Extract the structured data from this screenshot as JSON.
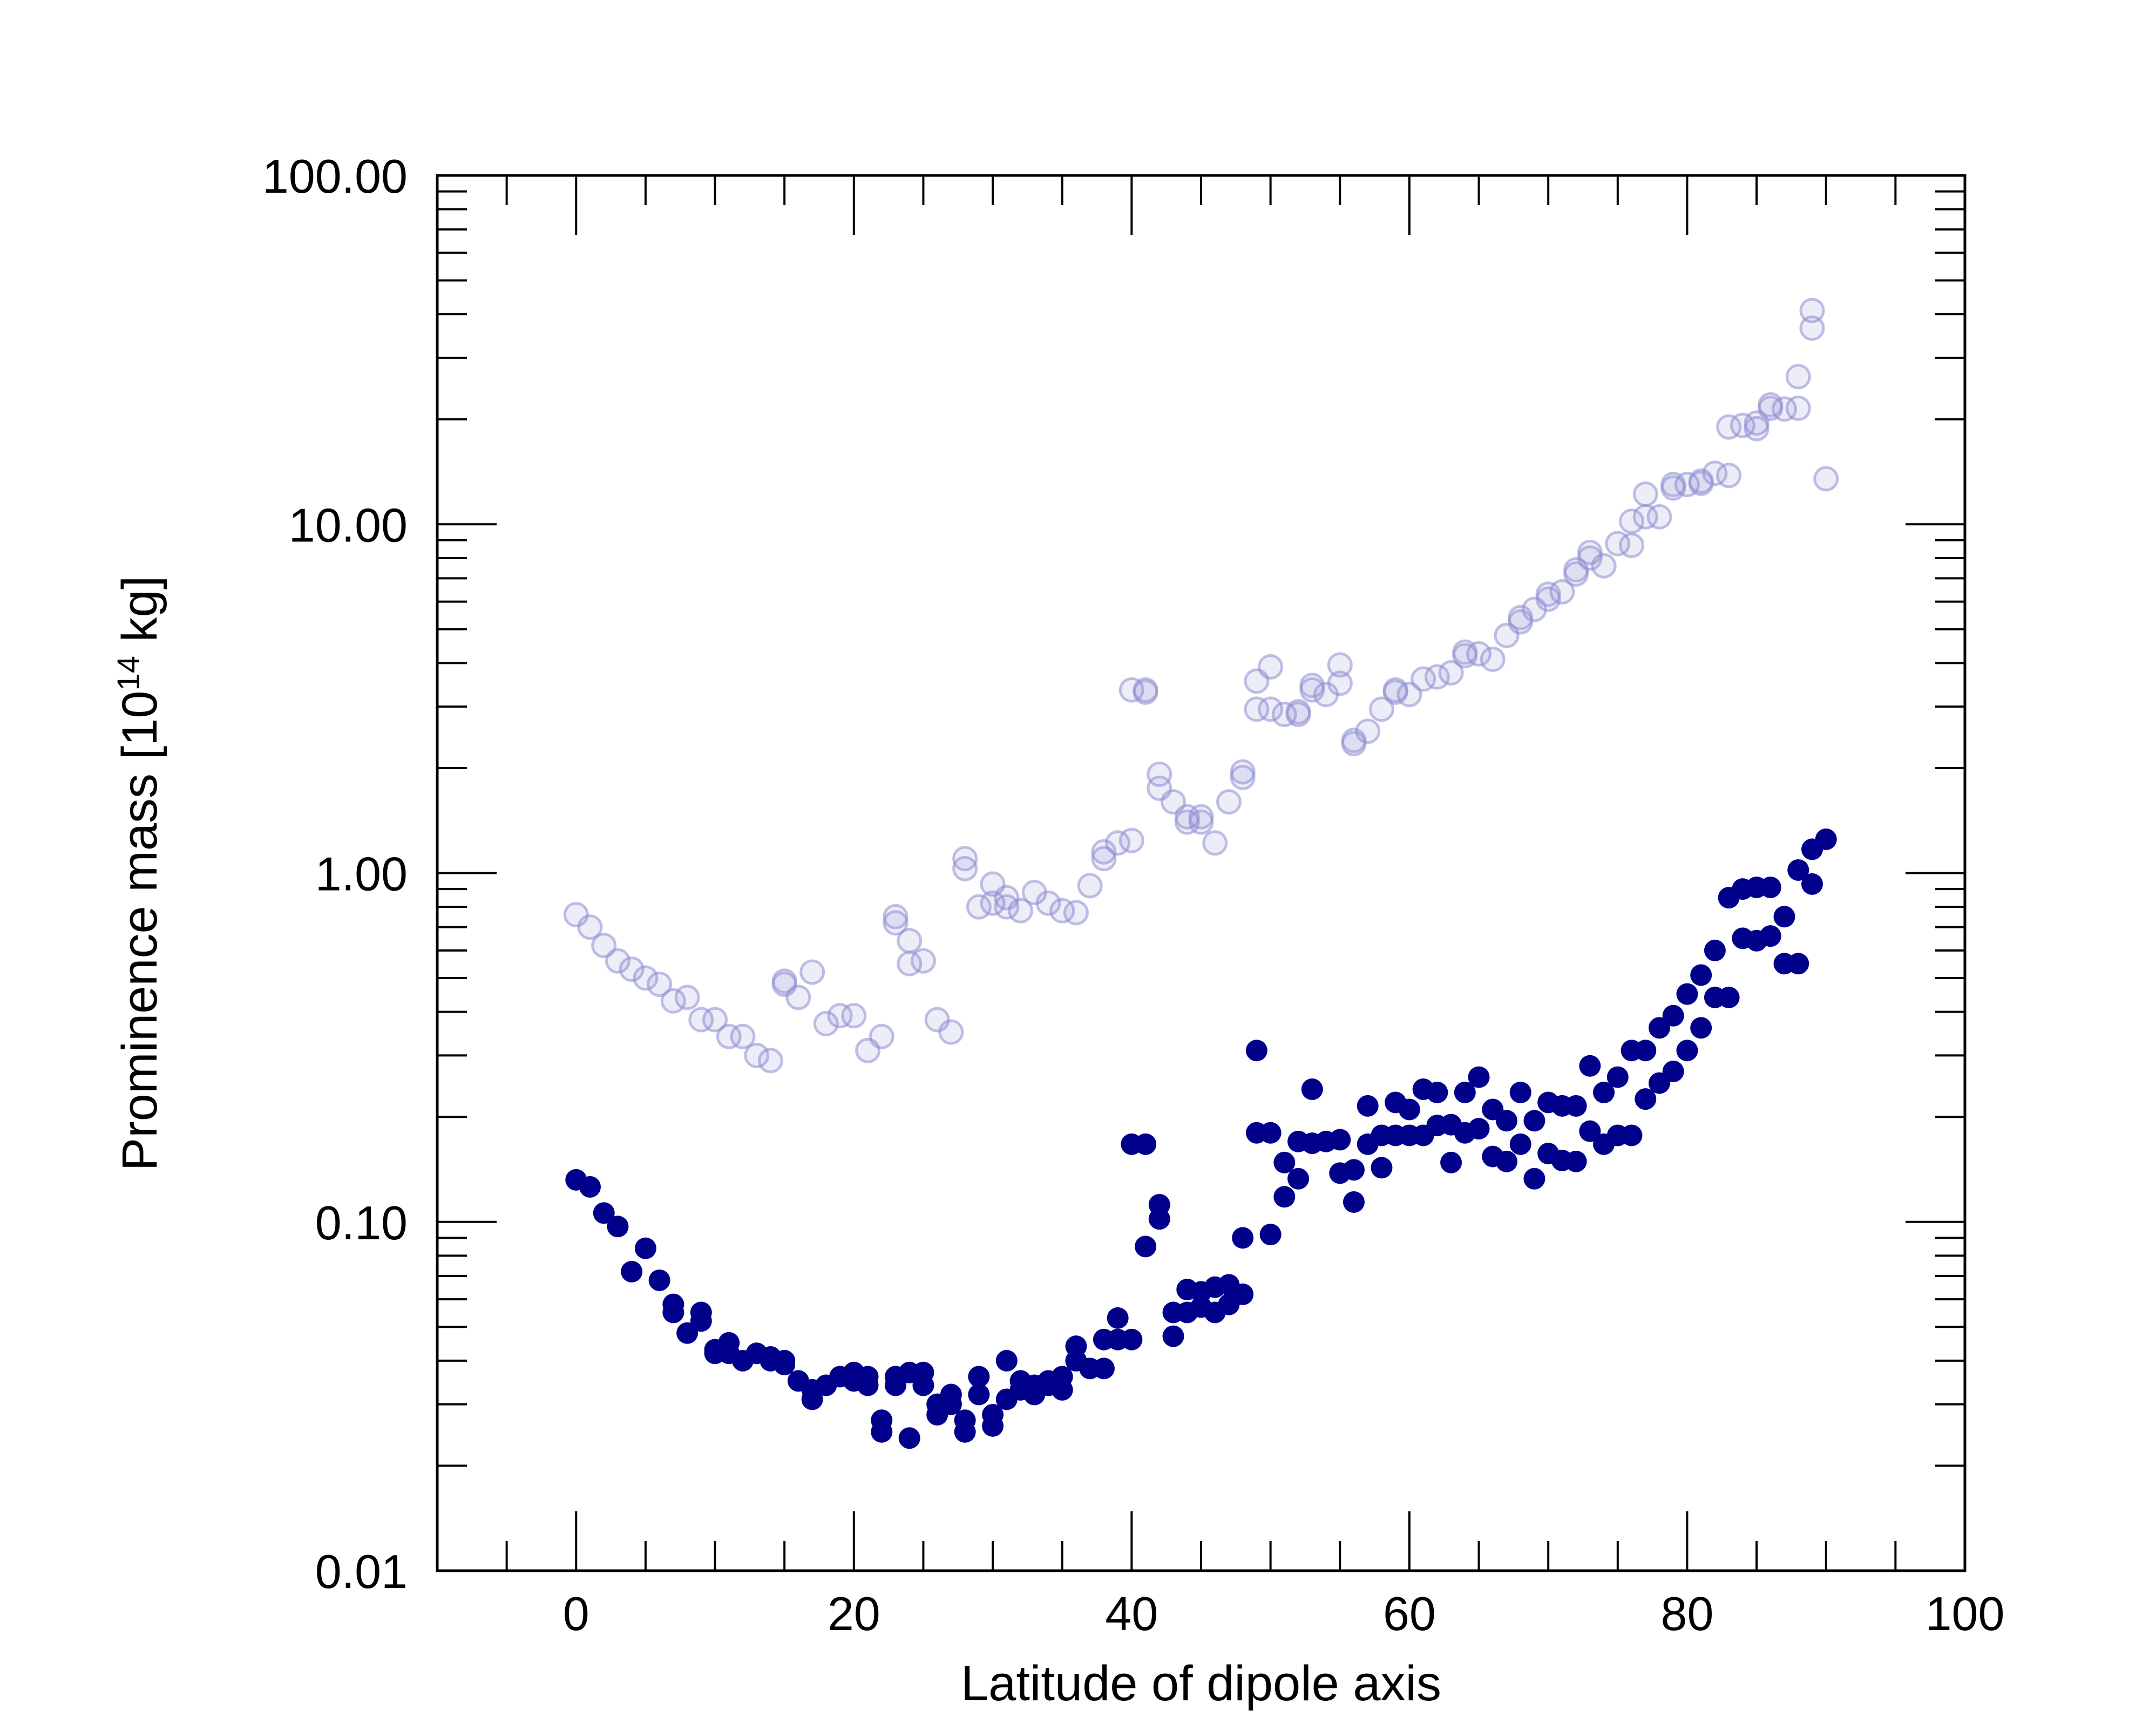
{
  "chart_data": {
    "type": "scatter",
    "title": "",
    "xlabel": "Latitude of dipole axis",
    "ylabel": {
      "prefix": "Prominence mass [10",
      "exponent": "14",
      "suffix": " kg]"
    },
    "xlim": [
      -10,
      100
    ],
    "ylim": [
      0.01,
      100
    ],
    "yscale": "log",
    "grid": false,
    "legend": null,
    "x_ticks": [
      0,
      20,
      40,
      60,
      80,
      100
    ],
    "y_ticks": [
      0.01,
      0.1,
      1,
      10,
      100
    ],
    "x_tick_labels": [
      "0",
      "20",
      "40",
      "60",
      "80",
      "100"
    ],
    "y_tick_labels": [
      "0.01",
      "0.10",
      "1.00",
      "10.00",
      "100.00"
    ],
    "series": [
      {
        "style": "open-faint",
        "color": "#8c8cd2",
        "points": [
          [
            0,
            0.76
          ],
          [
            1,
            0.7
          ],
          [
            2,
            0.62
          ],
          [
            3,
            0.56
          ],
          [
            4,
            0.53
          ],
          [
            5,
            0.5
          ],
          [
            6,
            0.48
          ],
          [
            7,
            0.43
          ],
          [
            8,
            0.44
          ],
          [
            9,
            0.38
          ],
          [
            10,
            0.38
          ],
          [
            11,
            0.34
          ],
          [
            12,
            0.34
          ],
          [
            13,
            0.3
          ],
          [
            14,
            0.29
          ],
          [
            15,
            0.48
          ],
          [
            15,
            0.49
          ],
          [
            16,
            0.44
          ],
          [
            17,
            0.52
          ],
          [
            18,
            0.37
          ],
          [
            19,
            0.39
          ],
          [
            20,
            0.39
          ],
          [
            21,
            0.31
          ],
          [
            22,
            0.34
          ],
          [
            23,
            0.75
          ],
          [
            23,
            0.72
          ],
          [
            24,
            0.64
          ],
          [
            24,
            0.55
          ],
          [
            25,
            0.56
          ],
          [
            26,
            0.38
          ],
          [
            27,
            0.35
          ],
          [
            28,
            1.1
          ],
          [
            28,
            1.03
          ],
          [
            29,
            0.8
          ],
          [
            30,
            0.93
          ],
          [
            30,
            0.82
          ],
          [
            31,
            0.85
          ],
          [
            31,
            0.8
          ],
          [
            32,
            0.78
          ],
          [
            33,
            0.88
          ],
          [
            34,
            0.82
          ],
          [
            35,
            0.78
          ],
          [
            36,
            0.77
          ],
          [
            37,
            0.92
          ],
          [
            38,
            1.1
          ],
          [
            38,
            1.15
          ],
          [
            39,
            1.22
          ],
          [
            40,
            1.24
          ],
          [
            40,
            3.35
          ],
          [
            41,
            3.35
          ],
          [
            41,
            3.3
          ],
          [
            42,
            1.92
          ],
          [
            42,
            1.75
          ],
          [
            43,
            1.6
          ],
          [
            44,
            1.45
          ],
          [
            44,
            1.4
          ],
          [
            45,
            1.45
          ],
          [
            45,
            1.4
          ],
          [
            46,
            1.22
          ],
          [
            47,
            1.6
          ],
          [
            48,
            1.95
          ],
          [
            48,
            1.88
          ],
          [
            49,
            3.55
          ],
          [
            49,
            2.95
          ],
          [
            50,
            3.9
          ],
          [
            50,
            2.95
          ],
          [
            51,
            2.85
          ],
          [
            52,
            2.9
          ],
          [
            52,
            2.85
          ],
          [
            53,
            3.45
          ],
          [
            53,
            3.35
          ],
          [
            54,
            3.25
          ],
          [
            55,
            3.5
          ],
          [
            55,
            3.95
          ],
          [
            56,
            2.4
          ],
          [
            56,
            2.35
          ],
          [
            57,
            2.55
          ],
          [
            58,
            2.95
          ],
          [
            59,
            3.35
          ],
          [
            59,
            3.3
          ],
          [
            60,
            3.25
          ],
          [
            61,
            3.6
          ],
          [
            62,
            3.65
          ],
          [
            63,
            3.75
          ],
          [
            64,
            4.3
          ],
          [
            64,
            4.2
          ],
          [
            65,
            4.25
          ],
          [
            66,
            4.1
          ],
          [
            67,
            4.8
          ],
          [
            68,
            5.25
          ],
          [
            68,
            5.4
          ],
          [
            69,
            5.7
          ],
          [
            70,
            6.3
          ],
          [
            70,
            6.1
          ],
          [
            71,
            6.4
          ],
          [
            72,
            7.4
          ],
          [
            72,
            7.2
          ],
          [
            73,
            8.3
          ],
          [
            73,
            8.0
          ],
          [
            74,
            7.6
          ],
          [
            75,
            8.8
          ],
          [
            76,
            8.7
          ],
          [
            76,
            10.2
          ],
          [
            77,
            12.2
          ],
          [
            77,
            10.5
          ],
          [
            78,
            10.5
          ],
          [
            79,
            12.7
          ],
          [
            79,
            13.0
          ],
          [
            80,
            13.0
          ],
          [
            81,
            13.1
          ],
          [
            81,
            13.3
          ],
          [
            82,
            14.0
          ],
          [
            83,
            13.8
          ],
          [
            83,
            19.0
          ],
          [
            84,
            19.2
          ],
          [
            85,
            18.8
          ],
          [
            85,
            19.5
          ],
          [
            86,
            21.5
          ],
          [
            86,
            22.0
          ],
          [
            87,
            21.4
          ],
          [
            88,
            26.5
          ],
          [
            88,
            21.5
          ],
          [
            89,
            41.0
          ],
          [
            89,
            36.5
          ],
          [
            90,
            13.5
          ]
        ]
      },
      {
        "style": "filled",
        "color": "#00008b",
        "points": [
          [
            0,
            0.132
          ],
          [
            1,
            0.126
          ],
          [
            2,
            0.106
          ],
          [
            3,
            0.097
          ],
          [
            4,
            0.072
          ],
          [
            5,
            0.084
          ],
          [
            6,
            0.068
          ],
          [
            7,
            0.058
          ],
          [
            7,
            0.055
          ],
          [
            8,
            0.048
          ],
          [
            9,
            0.055
          ],
          [
            9,
            0.052
          ],
          [
            10,
            0.043
          ],
          [
            10,
            0.042
          ],
          [
            11,
            0.045
          ],
          [
            11,
            0.042
          ],
          [
            12,
            0.04
          ],
          [
            13,
            0.042
          ],
          [
            14,
            0.04
          ],
          [
            14,
            0.041
          ],
          [
            15,
            0.04
          ],
          [
            15,
            0.039
          ],
          [
            16,
            0.035
          ],
          [
            17,
            0.031
          ],
          [
            17,
            0.033
          ],
          [
            18,
            0.034
          ],
          [
            19,
            0.036
          ],
          [
            20,
            0.037
          ],
          [
            20,
            0.035
          ],
          [
            21,
            0.036
          ],
          [
            21,
            0.034
          ],
          [
            22,
            0.027
          ],
          [
            22,
            0.025
          ],
          [
            23,
            0.036
          ],
          [
            23,
            0.034
          ],
          [
            24,
            0.037
          ],
          [
            24,
            0.024
          ],
          [
            25,
            0.037
          ],
          [
            25,
            0.034
          ],
          [
            26,
            0.028
          ],
          [
            26,
            0.03
          ],
          [
            27,
            0.032
          ],
          [
            27,
            0.03
          ],
          [
            28,
            0.027
          ],
          [
            28,
            0.025
          ],
          [
            29,
            0.036
          ],
          [
            29,
            0.032
          ],
          [
            30,
            0.028
          ],
          [
            30,
            0.026
          ],
          [
            31,
            0.04
          ],
          [
            31,
            0.031
          ],
          [
            32,
            0.033
          ],
          [
            32,
            0.035
          ],
          [
            33,
            0.032
          ],
          [
            33,
            0.034
          ],
          [
            34,
            0.035
          ],
          [
            34,
            0.034
          ],
          [
            35,
            0.036
          ],
          [
            35,
            0.033
          ],
          [
            36,
            0.044
          ],
          [
            36,
            0.04
          ],
          [
            37,
            0.038
          ],
          [
            38,
            0.046
          ],
          [
            38,
            0.038
          ],
          [
            39,
            0.053
          ],
          [
            39,
            0.046
          ],
          [
            40,
            0.046
          ],
          [
            40,
            0.167
          ],
          [
            41,
            0.167
          ],
          [
            41,
            0.085
          ],
          [
            42,
            0.112
          ],
          [
            42,
            0.102
          ],
          [
            43,
            0.055
          ],
          [
            43,
            0.047
          ],
          [
            44,
            0.064
          ],
          [
            44,
            0.055
          ],
          [
            45,
            0.063
          ],
          [
            45,
            0.057
          ],
          [
            46,
            0.065
          ],
          [
            46,
            0.055
          ],
          [
            47,
            0.066
          ],
          [
            47,
            0.058
          ],
          [
            48,
            0.062
          ],
          [
            48,
            0.09
          ],
          [
            49,
            0.31
          ],
          [
            49,
            0.18
          ],
          [
            50,
            0.18
          ],
          [
            50,
            0.092
          ],
          [
            51,
            0.148
          ],
          [
            51,
            0.118
          ],
          [
            52,
            0.17
          ],
          [
            52,
            0.133
          ],
          [
            53,
            0.24
          ],
          [
            53,
            0.168
          ],
          [
            54,
            0.17
          ],
          [
            55,
            0.172
          ],
          [
            55,
            0.138
          ],
          [
            56,
            0.141
          ],
          [
            56,
            0.114
          ],
          [
            57,
            0.215
          ],
          [
            57,
            0.167
          ],
          [
            58,
            0.177
          ],
          [
            58,
            0.143
          ],
          [
            59,
            0.22
          ],
          [
            59,
            0.177
          ],
          [
            60,
            0.21
          ],
          [
            60,
            0.177
          ],
          [
            61,
            0.24
          ],
          [
            61,
            0.177
          ],
          [
            62,
            0.235
          ],
          [
            62,
            0.189
          ],
          [
            63,
            0.19
          ],
          [
            63,
            0.148
          ],
          [
            64,
            0.235
          ],
          [
            64,
            0.18
          ],
          [
            65,
            0.26
          ],
          [
            65,
            0.185
          ],
          [
            66,
            0.21
          ],
          [
            66,
            0.154
          ],
          [
            67,
            0.195
          ],
          [
            67,
            0.149
          ],
          [
            68,
            0.235
          ],
          [
            68,
            0.167
          ],
          [
            69,
            0.195
          ],
          [
            69,
            0.133
          ],
          [
            70,
            0.22
          ],
          [
            70,
            0.157
          ],
          [
            71,
            0.215
          ],
          [
            71,
            0.15
          ],
          [
            72,
            0.215
          ],
          [
            72,
            0.149
          ],
          [
            73,
            0.28
          ],
          [
            73,
            0.182
          ],
          [
            74,
            0.235
          ],
          [
            74,
            0.167
          ],
          [
            75,
            0.26
          ],
          [
            75,
            0.177
          ],
          [
            76,
            0.31
          ],
          [
            76,
            0.177
          ],
          [
            77,
            0.31
          ],
          [
            77,
            0.225
          ],
          [
            78,
            0.36
          ],
          [
            78,
            0.25
          ],
          [
            79,
            0.39
          ],
          [
            79,
            0.27
          ],
          [
            80,
            0.45
          ],
          [
            80,
            0.31
          ],
          [
            81,
            0.51
          ],
          [
            81,
            0.36
          ],
          [
            82,
            0.6
          ],
          [
            82,
            0.44
          ],
          [
            83,
            0.85
          ],
          [
            83,
            0.44
          ],
          [
            84,
            0.9
          ],
          [
            84,
            0.65
          ],
          [
            85,
            0.91
          ],
          [
            85,
            0.64
          ],
          [
            86,
            0.91
          ],
          [
            86,
            0.66
          ],
          [
            87,
            0.75
          ],
          [
            87,
            0.55
          ],
          [
            88,
            1.02
          ],
          [
            88,
            0.55
          ],
          [
            89,
            1.17
          ],
          [
            89,
            0.93
          ],
          [
            90,
            1.25
          ]
        ]
      }
    ]
  }
}
